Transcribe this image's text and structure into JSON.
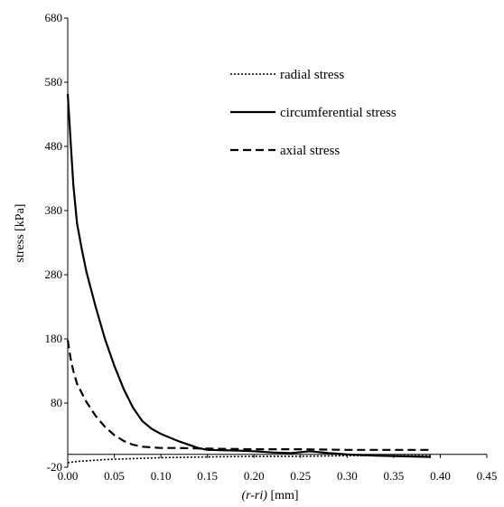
{
  "chart_data": {
    "type": "line",
    "title": "",
    "xlabel_italic": "(r-ri)",
    "xlabel_rest": " [mm]",
    "ylabel": "stress  [kPa]",
    "xlim": [
      0,
      0.45
    ],
    "ylim": [
      -20,
      680
    ],
    "x_ticks": [
      "0.00",
      "0.05",
      "0.10",
      "0.15",
      "0.20",
      "0.25",
      "0.30",
      "0.35",
      "0.40",
      "0.45"
    ],
    "y_ticks": [
      "-20",
      "80",
      "180",
      "280",
      "380",
      "480",
      "580",
      "680"
    ],
    "grid": false,
    "legend_position": "top-right",
    "series": [
      {
        "name": "radial stress",
        "style": "dotted",
        "color": "#000000",
        "x": [
          0.0,
          0.01,
          0.02,
          0.04,
          0.06,
          0.08,
          0.1,
          0.15,
          0.2,
          0.25,
          0.3,
          0.35,
          0.39
        ],
        "y": [
          -13,
          -11,
          -10,
          -8,
          -7,
          -6,
          -5,
          -4,
          -3,
          -3,
          -2,
          -2,
          -2
        ]
      },
      {
        "name": "circumferential stress",
        "style": "solid",
        "color": "#000000",
        "x": [
          0.0,
          0.003,
          0.006,
          0.01,
          0.015,
          0.02,
          0.03,
          0.04,
          0.05,
          0.06,
          0.07,
          0.08,
          0.09,
          0.1,
          0.12,
          0.14,
          0.15,
          0.18,
          0.2,
          0.22,
          0.24,
          0.26,
          0.28,
          0.3,
          0.33,
          0.36,
          0.39
        ],
        "y": [
          562,
          490,
          420,
          360,
          320,
          285,
          230,
          180,
          138,
          102,
          73,
          52,
          40,
          32,
          20,
          10,
          7,
          6,
          5,
          3,
          2,
          5,
          2,
          0,
          -2,
          -3,
          -4
        ]
      },
      {
        "name": "axial stress",
        "style": "dashed",
        "color": "#000000",
        "x": [
          0.0,
          0.003,
          0.006,
          0.01,
          0.02,
          0.03,
          0.04,
          0.05,
          0.06,
          0.07,
          0.08,
          0.1,
          0.12,
          0.15,
          0.2,
          0.25,
          0.3,
          0.35,
          0.39
        ],
        "y": [
          178,
          150,
          130,
          110,
          82,
          60,
          43,
          30,
          21,
          15,
          12,
          10,
          10,
          9,
          8,
          8,
          7,
          7,
          7
        ]
      }
    ]
  }
}
